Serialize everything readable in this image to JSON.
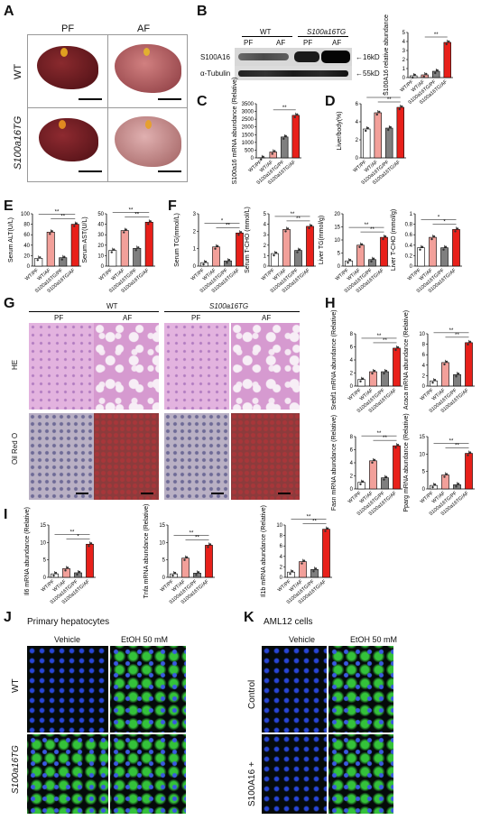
{
  "panels": {
    "A": "A",
    "B": "B",
    "C": "C",
    "D": "D",
    "E": "E",
    "F": "F",
    "G": "G",
    "H": "H",
    "I": "I",
    "J": "J",
    "K": "K"
  },
  "panelA": {
    "col_pf": "PF",
    "col_af": "AF",
    "row_wt": "WT",
    "row_tg": "S100a16TG"
  },
  "panelB": {
    "grp_wt": "WT",
    "grp_tg": "S100a16TG",
    "pf1": "PF",
    "af1": "AF",
    "pf2": "PF",
    "af2": "AF",
    "row1": "S100A16",
    "row2": "α-Tubulin",
    "size1": "←16kD",
    "size2": "←55kD",
    "ylabel": "S100A16 relative abundance",
    "sig": "**"
  },
  "groups": [
    "WT/PF",
    "WT/AF",
    "S100a16TG/PF",
    "S100a16TG/AF"
  ],
  "colors": {
    "pf": "#ffffff",
    "wt_af": "#f2a09a",
    "tg_pf": "#7f7f7f",
    "tg_af": "#e8201a"
  },
  "panelG": {
    "grp_wt": "WT",
    "grp_tg": "S100a16TG",
    "pf1": "PF",
    "af1": "AF",
    "pf2": "PF",
    "af2": "AF",
    "row1": "HE",
    "row2": "Oil Red O"
  },
  "panelJ": {
    "title": "Primary hepatocytes",
    "col1": "Vehicle",
    "col2": "EtOH 50 mM",
    "row1": "WT",
    "row2": "S100a16TG"
  },
  "panelK": {
    "title": "AML12 cells",
    "col1": "Vehicle",
    "col2": "EtOH 50 mM",
    "row1": "Control",
    "row2": "S100A16 +"
  },
  "chart_data": [
    {
      "id": "B",
      "type": "bar",
      "ylabel": "S100A16 relative abundance",
      "ylim": [
        0,
        5
      ],
      "yticks": [
        0,
        1,
        2,
        3,
        4,
        5
      ],
      "values": [
        0.2,
        0.3,
        0.7,
        3.9
      ],
      "sig": [
        "**"
      ]
    },
    {
      "id": "C",
      "type": "bar",
      "ylabel": "S100a16 mRNA abundance (Relative)",
      "ylim": [
        0,
        3500
      ],
      "yticks": [
        0,
        500,
        1000,
        1500,
        2000,
        2500,
        3000,
        3500
      ],
      "values": [
        10,
        380,
        1350,
        2750
      ],
      "sig": [
        "**"
      ]
    },
    {
      "id": "D",
      "type": "bar",
      "ylabel": "Liver/body(%)",
      "ylim": [
        0,
        6
      ],
      "yticks": [
        0,
        2,
        4,
        6
      ],
      "values": [
        3.2,
        5.0,
        3.3,
        5.6
      ],
      "sig": [
        "**",
        "*"
      ]
    },
    {
      "id": "E1",
      "type": "bar",
      "ylabel": "Serum ALT(U/L)",
      "ylim": [
        0,
        100
      ],
      "yticks": [
        0,
        20,
        40,
        60,
        80,
        100
      ],
      "values": [
        15,
        65,
        16,
        80
      ],
      "sig": [
        "**",
        "**"
      ]
    },
    {
      "id": "E2",
      "type": "bar",
      "ylabel": "Serum AST(U/L)",
      "ylim": [
        0,
        50
      ],
      "yticks": [
        0,
        10,
        20,
        30,
        40,
        50
      ],
      "values": [
        15,
        34,
        17,
        42
      ],
      "sig": [
        "**",
        "**"
      ]
    },
    {
      "id": "F1",
      "type": "bar",
      "ylabel": "Serum TG(mmol/L)",
      "ylim": [
        0,
        3
      ],
      "yticks": [
        0,
        1,
        2,
        3
      ],
      "values": [
        0.2,
        1.1,
        0.3,
        1.9
      ],
      "sig": [
        "**",
        "*"
      ]
    },
    {
      "id": "F2",
      "type": "bar",
      "ylabel": "Serum T-CHO (mmol/L)",
      "ylim": [
        0,
        5
      ],
      "yticks": [
        0,
        1,
        2,
        3,
        4,
        5
      ],
      "values": [
        1.2,
        3.5,
        1.5,
        3.8
      ],
      "sig": [
        "**",
        "**"
      ]
    },
    {
      "id": "F3",
      "type": "bar",
      "ylabel": "Liver TG(mmol/g)",
      "ylim": [
        0,
        20
      ],
      "yticks": [
        0,
        5,
        10,
        15,
        20
      ],
      "values": [
        2,
        8,
        2.5,
        11
      ],
      "sig": [
        "**",
        "**"
      ]
    },
    {
      "id": "F4",
      "type": "bar",
      "ylabel": "Liver T-CHO (mmol/g)",
      "ylim": [
        0,
        1.0
      ],
      "yticks": [
        0.0,
        0.2,
        0.4,
        0.6,
        0.8,
        1.0
      ],
      "values": [
        0.35,
        0.55,
        0.35,
        0.7
      ],
      "sig": [
        "*",
        "*"
      ]
    },
    {
      "id": "H1",
      "type": "bar",
      "ylabel": "Srebf1 mRNA abundance (Relative)",
      "ylim": [
        0,
        8
      ],
      "yticks": [
        0,
        2,
        4,
        6,
        8
      ],
      "values": [
        1,
        2.2,
        2.2,
        5.8
      ],
      "sig": [
        "**",
        "**"
      ]
    },
    {
      "id": "H2",
      "type": "bar",
      "ylabel": "Acaca mRNA abundance (Relative)",
      "ylim": [
        0,
        10
      ],
      "yticks": [
        0,
        2,
        4,
        6,
        8,
        10
      ],
      "values": [
        1,
        4.5,
        2.2,
        8.3
      ],
      "sig": [
        "**",
        "**"
      ]
    },
    {
      "id": "H3",
      "type": "bar",
      "ylabel": "Fasn mRNA abundance (Relative)",
      "ylim": [
        0,
        8
      ],
      "yticks": [
        0,
        2,
        4,
        6,
        8
      ],
      "values": [
        1,
        4.3,
        1.7,
        6.6
      ],
      "sig": [
        "**",
        "**"
      ]
    },
    {
      "id": "H4",
      "type": "bar",
      "ylabel": "Pparg mRNA abundance (Relative)",
      "ylim": [
        0,
        15
      ],
      "yticks": [
        0,
        5,
        10,
        15
      ],
      "values": [
        1,
        4.0,
        1.2,
        10.2
      ],
      "sig": [
        "**",
        "**"
      ]
    },
    {
      "id": "I1",
      "type": "bar",
      "ylabel": "Il6 mRNA abundance (Relative)",
      "ylim": [
        0,
        15
      ],
      "yticks": [
        0,
        5,
        10,
        15
      ],
      "values": [
        1,
        2.5,
        1.3,
        9.5
      ],
      "sig": [
        "*",
        "**"
      ]
    },
    {
      "id": "I2",
      "type": "bar",
      "ylabel": "Tnfa mRNA abundance (Relative)",
      "ylim": [
        0,
        15
      ],
      "yticks": [
        0,
        5,
        10,
        15
      ],
      "values": [
        1,
        5.5,
        1.2,
        9.2
      ],
      "sig": [
        "**",
        "**"
      ]
    },
    {
      "id": "I3",
      "type": "bar",
      "ylabel": "Il1b mRNA abundance (Relative)",
      "ylim": [
        0,
        10
      ],
      "yticks": [
        0,
        2,
        4,
        6,
        8,
        10
      ],
      "values": [
        1,
        3.0,
        1.5,
        9.2
      ],
      "sig": [
        "**",
        "**"
      ]
    }
  ]
}
